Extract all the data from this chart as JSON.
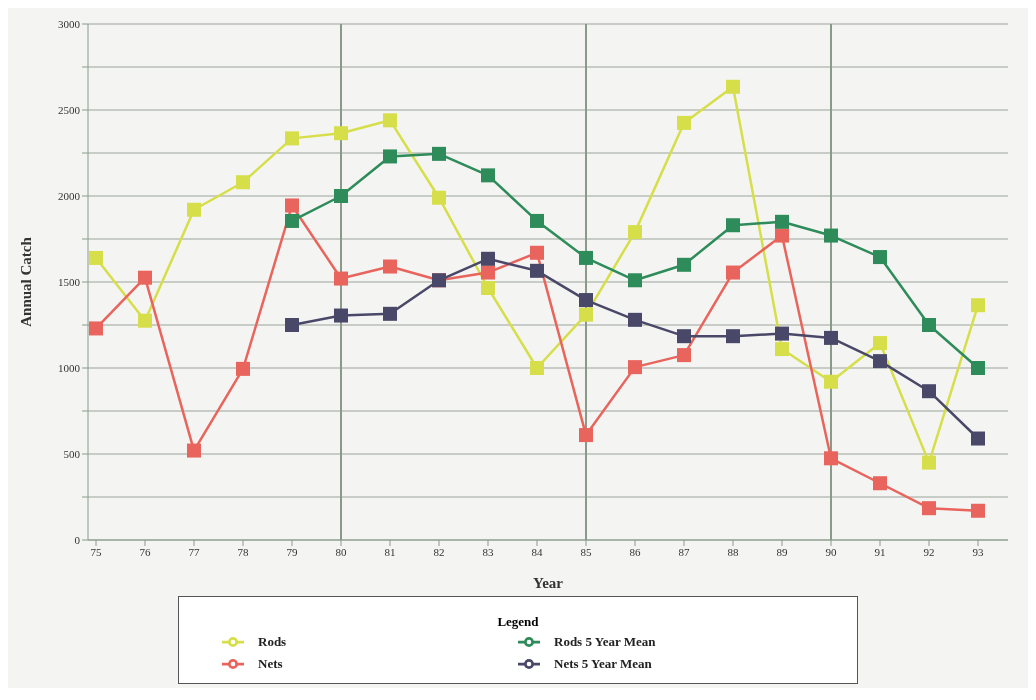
{
  "chart_data": {
    "type": "line",
    "xlabel": "Year",
    "ylabel": "Annual Catch",
    "legend_title": "Legend",
    "categories": [
      "75",
      "76",
      "77",
      "78",
      "79",
      "80",
      "81",
      "82",
      "83",
      "84",
      "85",
      "86",
      "87",
      "88",
      "89",
      "90",
      "91",
      "92",
      "93"
    ],
    "series": [
      {
        "name": "Rods",
        "color": "#d6de4a",
        "values": [
          1640,
          1275,
          1920,
          2080,
          2335,
          2365,
          2440,
          1990,
          1465,
          1000,
          1310,
          1790,
          2425,
          2635,
          1110,
          920,
          1145,
          450,
          1365
        ]
      },
      {
        "name": "Nets",
        "color": "#e8645c",
        "values": [
          1230,
          1525,
          520,
          995,
          1945,
          1520,
          1590,
          1510,
          1555,
          1670,
          610,
          1005,
          1075,
          1555,
          1770,
          475,
          330,
          185,
          170
        ]
      },
      {
        "name": "Rods 5 Year Mean",
        "color": "#2e8b5a",
        "values": [
          null,
          null,
          null,
          null,
          1855,
          2000,
          2230,
          2245,
          2120,
          1855,
          1640,
          1510,
          1600,
          1830,
          1850,
          1770,
          1645,
          1250,
          1000
        ]
      },
      {
        "name": "Nets 5 Year Mean",
        "color": "#4a4868",
        "values": [
          null,
          null,
          null,
          null,
          1250,
          1305,
          1315,
          1510,
          1635,
          1565,
          1395,
          1280,
          1185,
          1185,
          1200,
          1175,
          1040,
          865,
          590
        ]
      }
    ],
    "ylim": [
      0,
      3000
    ],
    "yticks": [
      0,
      {
        "value": 250,
        "label": null
      },
      500,
      {
        "value": 750,
        "label": null
      },
      1000,
      {
        "value": 1250,
        "label": null
      },
      1500,
      {
        "value": 1750,
        "label": null
      },
      2000,
      {
        "value": 2250,
        "label": null
      },
      2500,
      {
        "value": 2750,
        "label": null
      },
      3000
    ],
    "ref_lines": [
      {
        "axis": "x",
        "value": "80",
        "color": "#8a9a8a"
      },
      {
        "axis": "x",
        "value": "85",
        "color": "#8a9a8a"
      },
      {
        "axis": "x",
        "value": "90",
        "color": "#8a9a8a"
      }
    ],
    "grid": "y",
    "legend": "bottom",
    "marker": "square",
    "line_style": "solid"
  }
}
